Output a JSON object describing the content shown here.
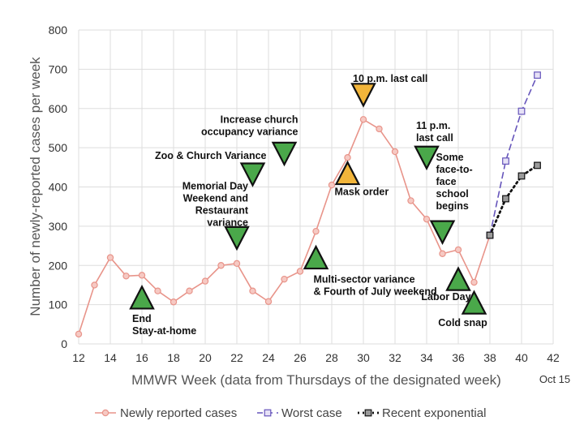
{
  "chart_data": {
    "type": "line",
    "xlabel": "MMWR Week (data from Thursdays of the designated week)",
    "ylabel": "Number of newly-reported cases per week",
    "xlim": [
      12,
      42
    ],
    "ylim": [
      0,
      800
    ],
    "x_ticks": [
      "12",
      "14",
      "16",
      "18",
      "20",
      "22",
      "24",
      "26",
      "28",
      "30",
      "32",
      "34",
      "36",
      "38",
      "40",
      "42"
    ],
    "y_ticks": [
      "0",
      "100",
      "200",
      "300",
      "400",
      "500",
      "600",
      "700",
      "800"
    ],
    "x_tick_values": [
      12,
      14,
      16,
      18,
      20,
      22,
      24,
      26,
      28,
      30,
      32,
      34,
      36,
      38,
      40,
      42
    ],
    "y_tick_values": [
      0,
      100,
      200,
      300,
      400,
      500,
      600,
      700,
      800
    ],
    "grid": true,
    "extra_label": "Oct 15",
    "legend_position": "bottom",
    "series": [
      {
        "name": "Newly reported cases",
        "color": "#e8948a",
        "x": [
          12,
          13,
          14,
          15,
          16,
          17,
          18,
          19,
          20,
          21,
          22,
          23,
          24,
          25,
          26,
          27,
          28,
          29,
          30,
          31,
          32,
          33,
          34,
          35,
          36,
          37,
          38
        ],
        "values": [
          25,
          150,
          220,
          173,
          175,
          135,
          107,
          135,
          160,
          200,
          205,
          135,
          108,
          165,
          185,
          287,
          405,
          475,
          572,
          548,
          490,
          365,
          318,
          230,
          240,
          157,
          277
        ]
      },
      {
        "name": "Worst case",
        "color": "#6655bb",
        "x": [
          38,
          39,
          40,
          41
        ],
        "values": [
          277,
          466,
          593,
          685
        ]
      },
      {
        "name": "Recent exponential",
        "color": "#111111",
        "x": [
          38,
          39,
          40,
          41
        ],
        "values": [
          277,
          370,
          428,
          455
        ]
      }
    ],
    "annotations": [
      {
        "lines": [
          "End",
          "Stay-at-home"
        ],
        "x": 16,
        "y": 118,
        "triangle": "up",
        "color": "#4aa84a"
      },
      {
        "lines": [
          "Memorial Day",
          "Weekend and",
          "Restaurant",
          "variance"
        ],
        "x": 22,
        "y": 270,
        "triangle": "down",
        "color": "#4aa84a"
      },
      {
        "lines": [
          "Zoo & Church Variance"
        ],
        "x": 23,
        "y": 432,
        "triangle": "down",
        "color": "#4aa84a"
      },
      {
        "lines": [
          "Increase church",
          "occupancy variance"
        ],
        "x": 25,
        "y": 485,
        "triangle": "down",
        "color": "#4aa84a"
      },
      {
        "lines": [
          "Multi-sector variance",
          "& Fourth of July weekend"
        ],
        "x": 27,
        "y": 220,
        "triangle": "up",
        "color": "#4aa84a"
      },
      {
        "lines": [
          "Mask order"
        ],
        "x": 29,
        "y": 435,
        "triangle": "up",
        "color": "#f2b53a"
      },
      {
        "lines": [
          "10 p.m. last call"
        ],
        "x": 30,
        "y": 635,
        "triangle": "down",
        "color": "#f2b53a"
      },
      {
        "lines": [
          "11 p.m.",
          "last call"
        ],
        "x": 34,
        "y": 475,
        "triangle": "down",
        "color": "#4aa84a"
      },
      {
        "lines": [
          "Some",
          "face-to-",
          "face",
          "school",
          "begins"
        ],
        "x": 35,
        "y": 285,
        "triangle": "down",
        "color": "#4aa84a"
      },
      {
        "lines": [
          "Labor Day"
        ],
        "x": 36,
        "y": 165,
        "triangle": "up",
        "color": "#4aa84a"
      },
      {
        "lines": [
          "Cold snap"
        ],
        "x": 37,
        "y": 105,
        "triangle": "up",
        "color": "#4aa84a"
      }
    ]
  }
}
